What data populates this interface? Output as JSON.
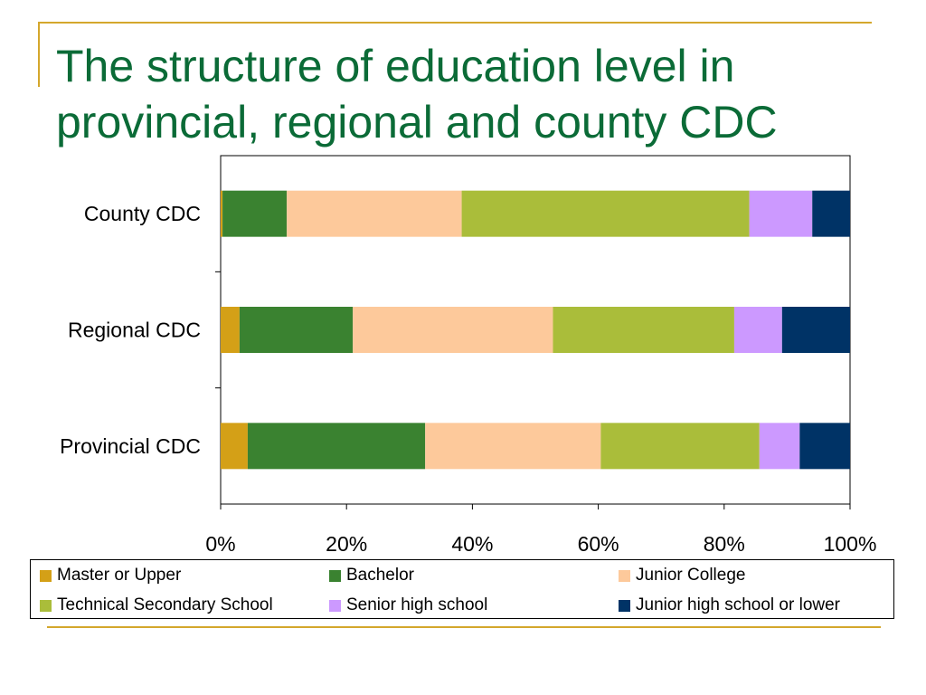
{
  "slide": {
    "title_line1": "The structure of education level in",
    "title_line2": "provincial, regional and county CDC"
  },
  "colors": {
    "title": "#0b6b37",
    "rule": "#d4a72c"
  },
  "chart_data": {
    "type": "bar",
    "orientation": "horizontal",
    "stacked": "percent",
    "categories": [
      "County CDC",
      "Regional CDC",
      "Provincial CDC"
    ],
    "xlim": [
      0,
      100
    ],
    "x_ticks": [
      "0%",
      "20%",
      "40%",
      "60%",
      "80%",
      "100%"
    ],
    "grid": false,
    "legend_position": "bottom",
    "series": [
      {
        "name": "Master or Upper",
        "color": "#d4a017",
        "values": [
          0.3,
          3.0,
          4.3
        ]
      },
      {
        "name": "Bachelor",
        "color": "#3a8230",
        "values": [
          10.2,
          18.0,
          28.2
        ]
      },
      {
        "name": "Junior College",
        "color": "#fdc99b",
        "values": [
          27.8,
          31.8,
          27.9
        ]
      },
      {
        "name": "Technical Secondary School",
        "color": "#aabd3a",
        "values": [
          45.7,
          28.8,
          25.2
        ]
      },
      {
        "name": "Senior high school",
        "color": "#cc99ff",
        "values": [
          10.0,
          7.6,
          6.4
        ]
      },
      {
        "name": "Junior high school or lower",
        "color": "#003366",
        "values": [
          6.0,
          10.8,
          8.0
        ]
      }
    ]
  }
}
